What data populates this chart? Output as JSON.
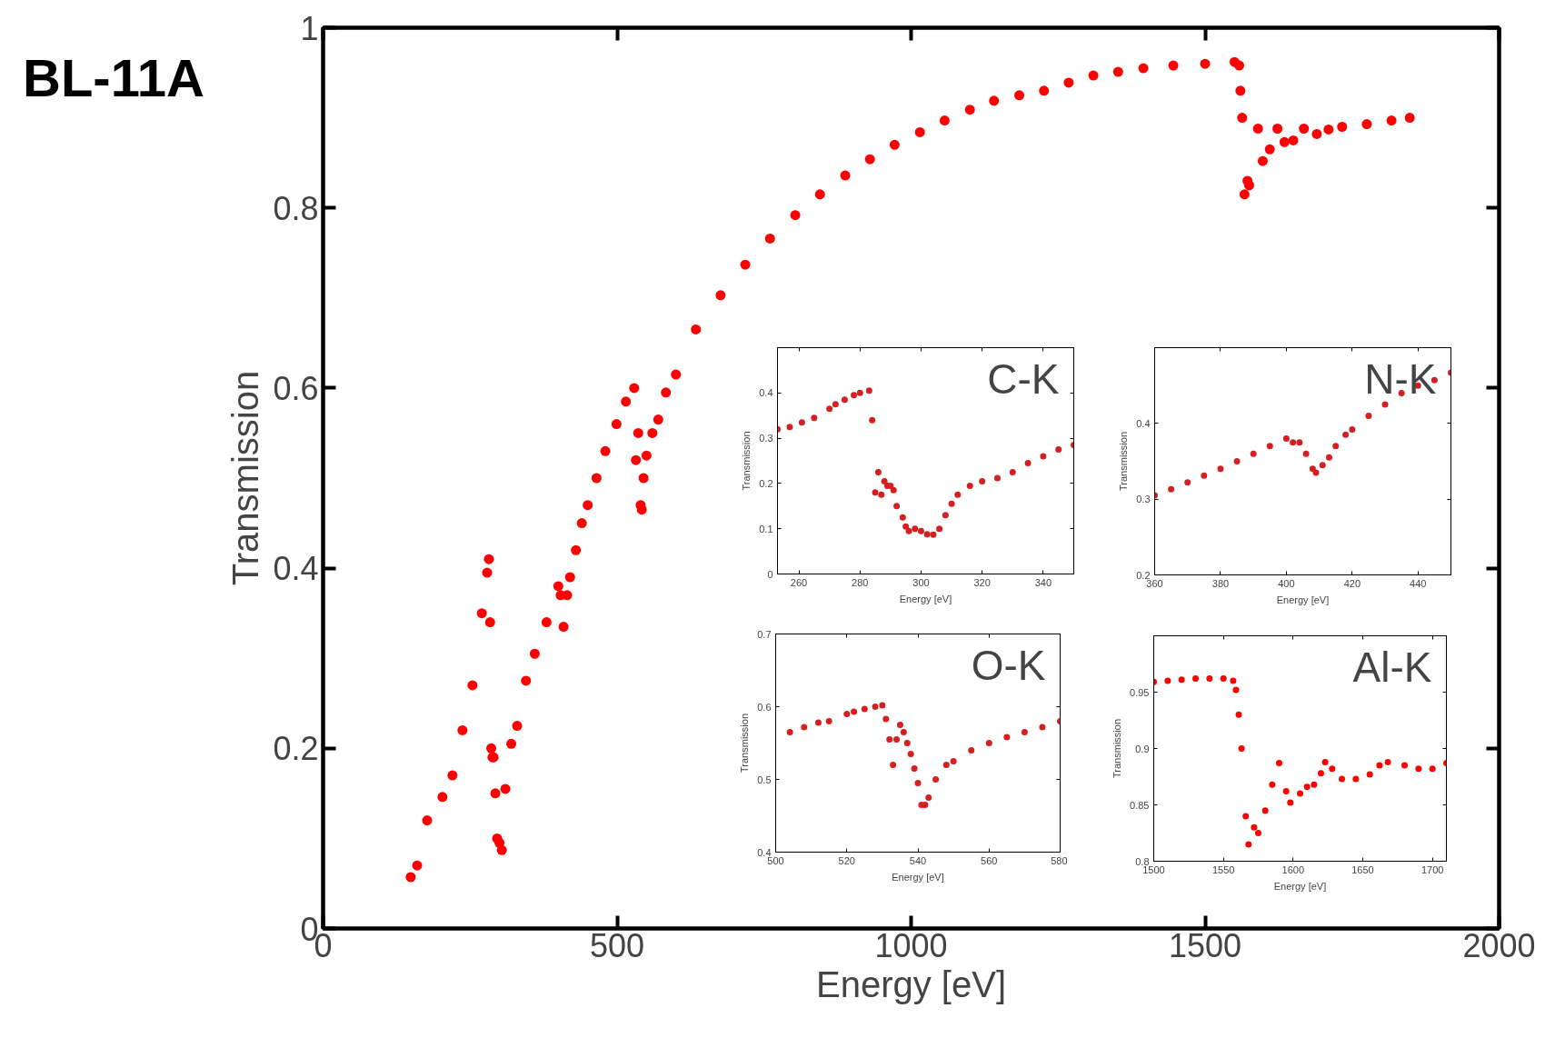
{
  "chart_data": [
    {
      "type": "scatter",
      "title": "BL-11A",
      "xlabel": "Energy [eV]",
      "ylabel": "Transmission",
      "marker": "circle",
      "xlim": [
        0,
        2000
      ],
      "ylim": [
        0,
        1
      ],
      "xticks": [
        0,
        500,
        1000,
        1500,
        2000
      ],
      "yticks": [
        0,
        0.2,
        0.4,
        0.6,
        0.8,
        1
      ],
      "series": [
        {
          "color": "#ff0000",
          "x": [
            149,
            160,
            177,
            203,
            220,
            237,
            254,
            270,
            279,
            282,
            284,
            286,
            288,
            290,
            293,
            296,
            300,
            304,
            310,
            320,
            330,
            345,
            360,
            380,
            400,
            404,
            409,
            415,
            420,
            430,
            440,
            450,
            465,
            480,
            499,
            515,
            529,
            532,
            536,
            540,
            542,
            545,
            550,
            560,
            570,
            583,
            600,
            634,
            676,
            718,
            760,
            803,
            845,
            888,
            930,
            972,
            1015,
            1057,
            1100,
            1141,
            1184,
            1226,
            1268,
            1310,
            1352,
            1395,
            1446,
            1500,
            1550,
            1558,
            1560,
            1563,
            1567,
            1572,
            1575,
            1590,
            1598,
            1610,
            1623,
            1635,
            1650,
            1668,
            1690,
            1710,
            1733,
            1775,
            1817,
            1848
          ],
          "values": [
            0.057,
            0.07,
            0.12,
            0.146,
            0.17,
            0.22,
            0.27,
            0.35,
            0.395,
            0.41,
            0.34,
            0.2,
            0.19,
            0.19,
            0.15,
            0.1,
            0.095,
            0.087,
            0.155,
            0.205,
            0.225,
            0.275,
            0.305,
            0.34,
            0.38,
            0.37,
            0.335,
            0.37,
            0.39,
            0.42,
            0.45,
            0.47,
            0.5,
            0.53,
            0.56,
            0.585,
            0.6,
            0.52,
            0.55,
            0.47,
            0.465,
            0.5,
            0.525,
            0.55,
            0.565,
            0.595,
            0.615,
            0.665,
            0.703,
            0.737,
            0.766,
            0.792,
            0.815,
            0.836,
            0.854,
            0.87,
            0.884,
            0.897,
            0.909,
            0.919,
            0.925,
            0.93,
            0.939,
            0.947,
            0.951,
            0.955,
            0.958,
            0.96,
            0.962,
            0.958,
            0.93,
            0.9,
            0.815,
            0.83,
            0.825,
            0.888,
            0.852,
            0.865,
            0.888,
            0.873,
            0.875,
            0.888,
            0.882,
            0.887,
            0.89,
            0.893,
            0.897,
            0.9
          ]
        }
      ]
    },
    {
      "type": "scatter",
      "title": "C-K",
      "xlabel": "Energy [eV]",
      "ylabel": "Transmission",
      "marker": "circle",
      "xlim": [
        253,
        350
      ],
      "ylim": [
        0,
        0.5
      ],
      "xticks": [
        260,
        280,
        300,
        320,
        340
      ],
      "yticks": [
        0,
        0.1,
        0.2,
        0.3,
        0.4
      ],
      "series": [
        {
          "color": "#d42020",
          "x": [
            253,
            257,
            261,
            265,
            270,
            272,
            275,
            278,
            280,
            283,
            284,
            285,
            286,
            287,
            288,
            289,
            290,
            291,
            292,
            294,
            295,
            296,
            298,
            300,
            302,
            304,
            306,
            308,
            310,
            312,
            316,
            320,
            325,
            330,
            335,
            340,
            345,
            350
          ],
          "values": [
            0.32,
            0.325,
            0.335,
            0.345,
            0.365,
            0.375,
            0.385,
            0.395,
            0.4,
            0.405,
            0.34,
            0.18,
            0.225,
            0.175,
            0.205,
            0.195,
            0.195,
            0.185,
            0.15,
            0.125,
            0.105,
            0.095,
            0.1,
            0.095,
            0.088,
            0.087,
            0.1,
            0.13,
            0.155,
            0.175,
            0.195,
            0.205,
            0.212,
            0.225,
            0.245,
            0.26,
            0.275,
            0.285
          ]
        }
      ]
    },
    {
      "type": "scatter",
      "title": "N-K",
      "xlabel": "Energy [eV]",
      "ylabel": "Transmission",
      "marker": "circle",
      "xlim": [
        360,
        450
      ],
      "ylim": [
        0.2,
        0.5
      ],
      "xticks": [
        360,
        380,
        400,
        420,
        440
      ],
      "yticks": [
        0.2,
        0.3,
        0.4
      ],
      "series": [
        {
          "color": "#d42020",
          "x": [
            360,
            365,
            370,
            375,
            380,
            385,
            390,
            395,
            400,
            402,
            404,
            406,
            408,
            409,
            411,
            413,
            415,
            418,
            420,
            425,
            430,
            435,
            440,
            445,
            450
          ],
          "values": [
            0.305,
            0.313,
            0.322,
            0.331,
            0.34,
            0.35,
            0.36,
            0.37,
            0.38,
            0.375,
            0.375,
            0.36,
            0.34,
            0.335,
            0.345,
            0.355,
            0.37,
            0.385,
            0.392,
            0.41,
            0.425,
            0.44,
            0.45,
            0.457,
            0.467
          ]
        }
      ]
    },
    {
      "type": "scatter",
      "title": "O-K",
      "xlabel": "Energy [eV]",
      "ylabel": "Transmission",
      "marker": "circle",
      "xlim": [
        500,
        580
      ],
      "ylim": [
        0.4,
        0.7
      ],
      "xticks": [
        500,
        520,
        540,
        560,
        580
      ],
      "yticks": [
        0.4,
        0.5,
        0.6,
        0.7
      ],
      "series": [
        {
          "color": "#d42020",
          "x": [
            504,
            508,
            512,
            515,
            520,
            522,
            525,
            528,
            530,
            531,
            532,
            533,
            534,
            535,
            536,
            537,
            538,
            539,
            540,
            541,
            542,
            543,
            545,
            548,
            550,
            555,
            560,
            565,
            570,
            575,
            580
          ],
          "values": [
            0.565,
            0.572,
            0.578,
            0.58,
            0.59,
            0.593,
            0.597,
            0.6,
            0.602,
            0.583,
            0.555,
            0.52,
            0.555,
            0.575,
            0.565,
            0.55,
            0.535,
            0.515,
            0.495,
            0.465,
            0.465,
            0.475,
            0.5,
            0.52,
            0.525,
            0.54,
            0.55,
            0.558,
            0.565,
            0.572,
            0.58
          ]
        }
      ]
    },
    {
      "type": "scatter",
      "title": "Al-K",
      "xlabel": "Energy [eV]",
      "ylabel": "Transmission",
      "marker": "circle",
      "xlim": [
        1500,
        1710
      ],
      "ylim": [
        0.8,
        1.0
      ],
      "xticks": [
        1500,
        1550,
        1600,
        1650,
        1700
      ],
      "yticks": [
        0.8,
        0.85,
        0.9,
        0.95
      ],
      "series": [
        {
          "color": "#ff0000",
          "x": [
            1500,
            1510,
            1520,
            1530,
            1540,
            1550,
            1557,
            1559,
            1561,
            1563,
            1566,
            1568,
            1572,
            1575,
            1580,
            1585,
            1590,
            1595,
            1598,
            1605,
            1610,
            1615,
            1620,
            1623,
            1628,
            1635,
            1645,
            1655,
            1662,
            1668,
            1680,
            1690,
            1700,
            1710
          ],
          "values": [
            0.959,
            0.96,
            0.961,
            0.962,
            0.962,
            0.962,
            0.96,
            0.952,
            0.93,
            0.9,
            0.84,
            0.815,
            0.83,
            0.825,
            0.845,
            0.868,
            0.887,
            0.862,
            0.852,
            0.86,
            0.866,
            0.868,
            0.878,
            0.888,
            0.882,
            0.873,
            0.873,
            0.877,
            0.885,
            0.888,
            0.885,
            0.882,
            0.882,
            0.887
          ]
        }
      ]
    }
  ]
}
